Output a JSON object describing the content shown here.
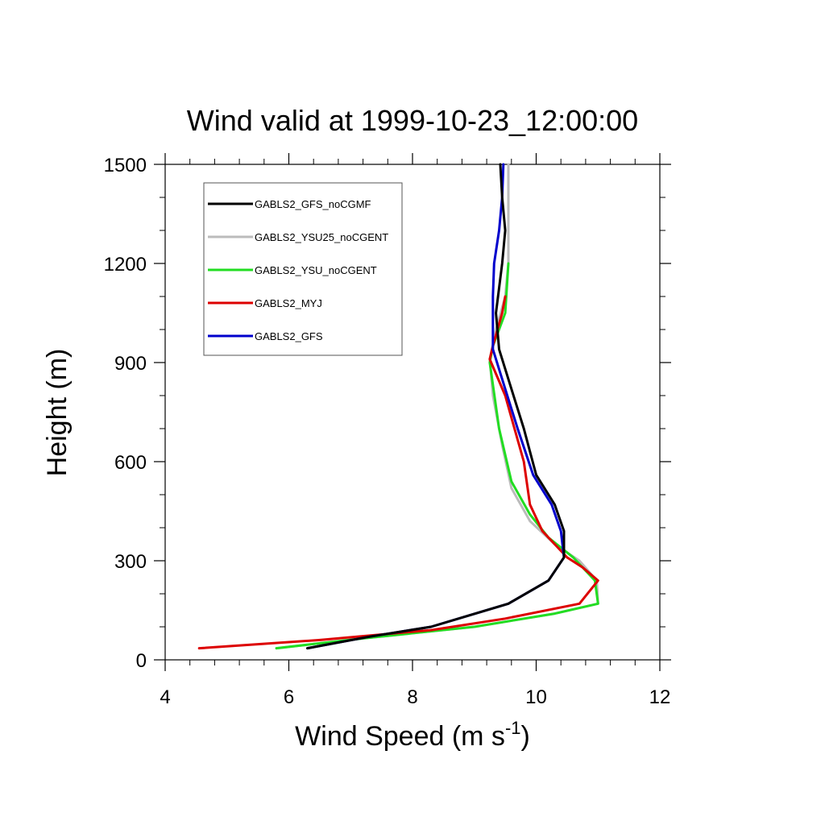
{
  "chart_data": {
    "type": "line",
    "title": "Wind valid at 1999-10-23_12:00:00",
    "xlabel": {
      "main": "Wind Speed (m s",
      "sup": "-1",
      "end": ")"
    },
    "ylabel": "Height (m)",
    "xlim": [
      4,
      12
    ],
    "ylim": [
      0,
      1500
    ],
    "xticks": [
      4,
      6,
      8,
      10,
      12
    ],
    "yticks": [
      0,
      300,
      600,
      900,
      1200,
      1500
    ],
    "x_minor_step": 0.4,
    "y_minor_step": 100,
    "grid": false,
    "legend_placement": "top-left",
    "series": [
      {
        "name": "GABLS2_YSU25_noCGENT",
        "color": "#bbbbbb",
        "points": [
          [
            5.8,
            35
          ],
          [
            7.2,
            65
          ],
          [
            9.0,
            100
          ],
          [
            10.3,
            140
          ],
          [
            11.0,
            170
          ],
          [
            10.98,
            240
          ],
          [
            10.7,
            300
          ],
          [
            10.3,
            350
          ],
          [
            9.9,
            420
          ],
          [
            9.6,
            520
          ],
          [
            9.45,
            650
          ],
          [
            9.3,
            800
          ],
          [
            9.25,
            910
          ],
          [
            9.35,
            1000
          ],
          [
            9.5,
            1100
          ],
          [
            9.55,
            1200
          ],
          [
            9.55,
            1300
          ],
          [
            9.55,
            1400
          ],
          [
            9.55,
            1500
          ]
        ]
      },
      {
        "name": "GABLS2_YSU_noCGENT",
        "color": "#22dd22",
        "points": [
          [
            5.8,
            35
          ],
          [
            7.2,
            65
          ],
          [
            9.0,
            100
          ],
          [
            10.3,
            140
          ],
          [
            11.0,
            170
          ],
          [
            10.95,
            240
          ],
          [
            10.6,
            310
          ],
          [
            10.2,
            370
          ],
          [
            9.9,
            440
          ],
          [
            9.6,
            540
          ],
          [
            9.4,
            700
          ],
          [
            9.25,
            900
          ],
          [
            9.3,
            950
          ],
          [
            9.5,
            1050
          ],
          [
            9.55,
            1200
          ]
        ]
      },
      {
        "name": "GABLS2_MYJ",
        "color": "#dd0000",
        "points": [
          [
            4.55,
            35
          ],
          [
            6.5,
            60
          ],
          [
            8.3,
            90
          ],
          [
            9.5,
            125
          ],
          [
            10.7,
            170
          ],
          [
            11.0,
            240
          ],
          [
            10.75,
            280
          ],
          [
            10.5,
            310
          ],
          [
            10.1,
            390
          ],
          [
            9.9,
            470
          ],
          [
            9.8,
            600
          ],
          [
            9.65,
            700
          ],
          [
            9.5,
            800
          ],
          [
            9.25,
            910
          ],
          [
            9.3,
            950
          ],
          [
            9.45,
            1050
          ],
          [
            9.5,
            1100
          ]
        ]
      },
      {
        "name": "GABLS2_GFS",
        "color": "#0000cc",
        "points": [
          [
            6.3,
            35
          ],
          [
            7.3,
            70
          ],
          [
            8.3,
            100
          ],
          [
            9.55,
            170
          ],
          [
            10.2,
            240
          ],
          [
            10.45,
            310
          ],
          [
            10.4,
            390
          ],
          [
            10.25,
            470
          ],
          [
            9.95,
            560
          ],
          [
            9.7,
            700
          ],
          [
            9.5,
            820
          ],
          [
            9.3,
            940
          ],
          [
            9.3,
            1050
          ],
          [
            9.3,
            1100
          ],
          [
            9.32,
            1200
          ],
          [
            9.4,
            1300
          ],
          [
            9.45,
            1400
          ],
          [
            9.47,
            1500
          ]
        ]
      },
      {
        "name": "GABLS2_GFS_noCGMF",
        "color": "#000000",
        "points": [
          [
            6.3,
            35
          ],
          [
            7.3,
            70
          ],
          [
            8.3,
            100
          ],
          [
            9.55,
            170
          ],
          [
            10.2,
            240
          ],
          [
            10.45,
            310
          ],
          [
            10.45,
            390
          ],
          [
            10.3,
            470
          ],
          [
            10.0,
            560
          ],
          [
            9.8,
            700
          ],
          [
            9.6,
            820
          ],
          [
            9.4,
            940
          ],
          [
            9.35,
            1050
          ],
          [
            9.45,
            1200
          ],
          [
            9.5,
            1300
          ],
          [
            9.45,
            1400
          ],
          [
            9.42,
            1500
          ]
        ]
      }
    ],
    "legend": [
      {
        "name": "GABLS2_GFS_noCGMF",
        "color": "#000000"
      },
      {
        "name": "GABLS2_YSU25_noCGENT",
        "color": "#bbbbbb"
      },
      {
        "name": "GABLS2_YSU_noCGENT",
        "color": "#22dd22"
      },
      {
        "name": "GABLS2_MYJ",
        "color": "#dd0000"
      },
      {
        "name": "GABLS2_GFS",
        "color": "#0000cc"
      }
    ]
  }
}
